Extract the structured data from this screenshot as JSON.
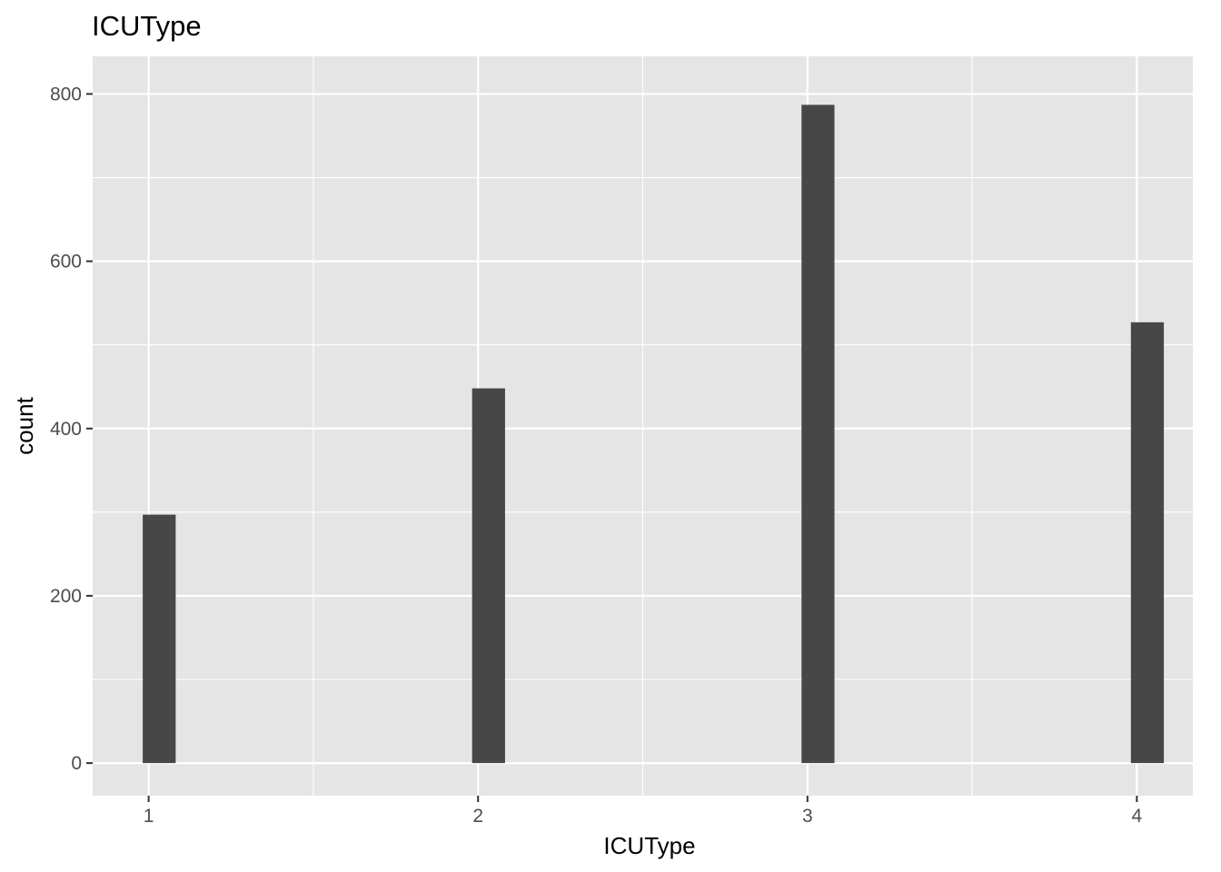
{
  "chart_data": {
    "type": "bar",
    "title": "ICUType",
    "xlabel": "ICUType",
    "ylabel": "count",
    "x": [
      1,
      2,
      3,
      4
    ],
    "values": [
      297,
      448,
      787,
      527
    ],
    "xlim": [
      0.83,
      4.17
    ],
    "ylim": [
      -39,
      845
    ],
    "x_ticks": [
      1,
      2,
      3,
      4
    ],
    "y_ticks": [
      0,
      200,
      400,
      600,
      800
    ],
    "x_tick_labels": [
      "1",
      "2",
      "3",
      "4"
    ],
    "y_tick_labels": [
      "0",
      "200",
      "400",
      "600",
      "800"
    ],
    "grid": true,
    "legend": "none",
    "colors": {
      "panel": "#e5e5e5",
      "grid": "#ffffff",
      "bar": "#474747",
      "tick_text": "#4d4d4d"
    }
  }
}
